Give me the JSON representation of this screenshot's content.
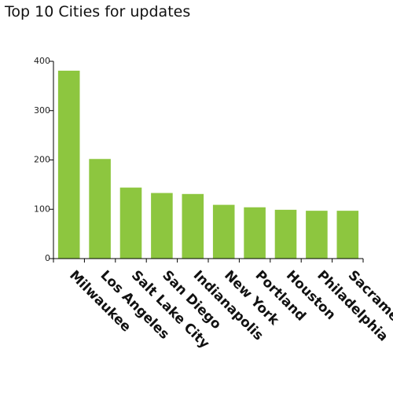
{
  "title": "Top 10 Cities for updates",
  "colors": {
    "bar": "#8dc63f",
    "axis": "#000000"
  },
  "chart_data": {
    "type": "bar",
    "title": "Top 10 Cities for updates",
    "xlabel": "",
    "ylabel": "",
    "categories": [
      "Milwaukee",
      "Los Angeles",
      "Salt Lake City",
      "San Diego",
      "Indianapolis",
      "New York",
      "Portland",
      "Houston",
      "Philadelphia",
      "Sacramento"
    ],
    "values": [
      381,
      202,
      144,
      133,
      131,
      109,
      104,
      99,
      97,
      97
    ],
    "ylim": [
      0,
      400
    ],
    "yticks": [
      0,
      100,
      200,
      300,
      400
    ],
    "grid": false
  }
}
